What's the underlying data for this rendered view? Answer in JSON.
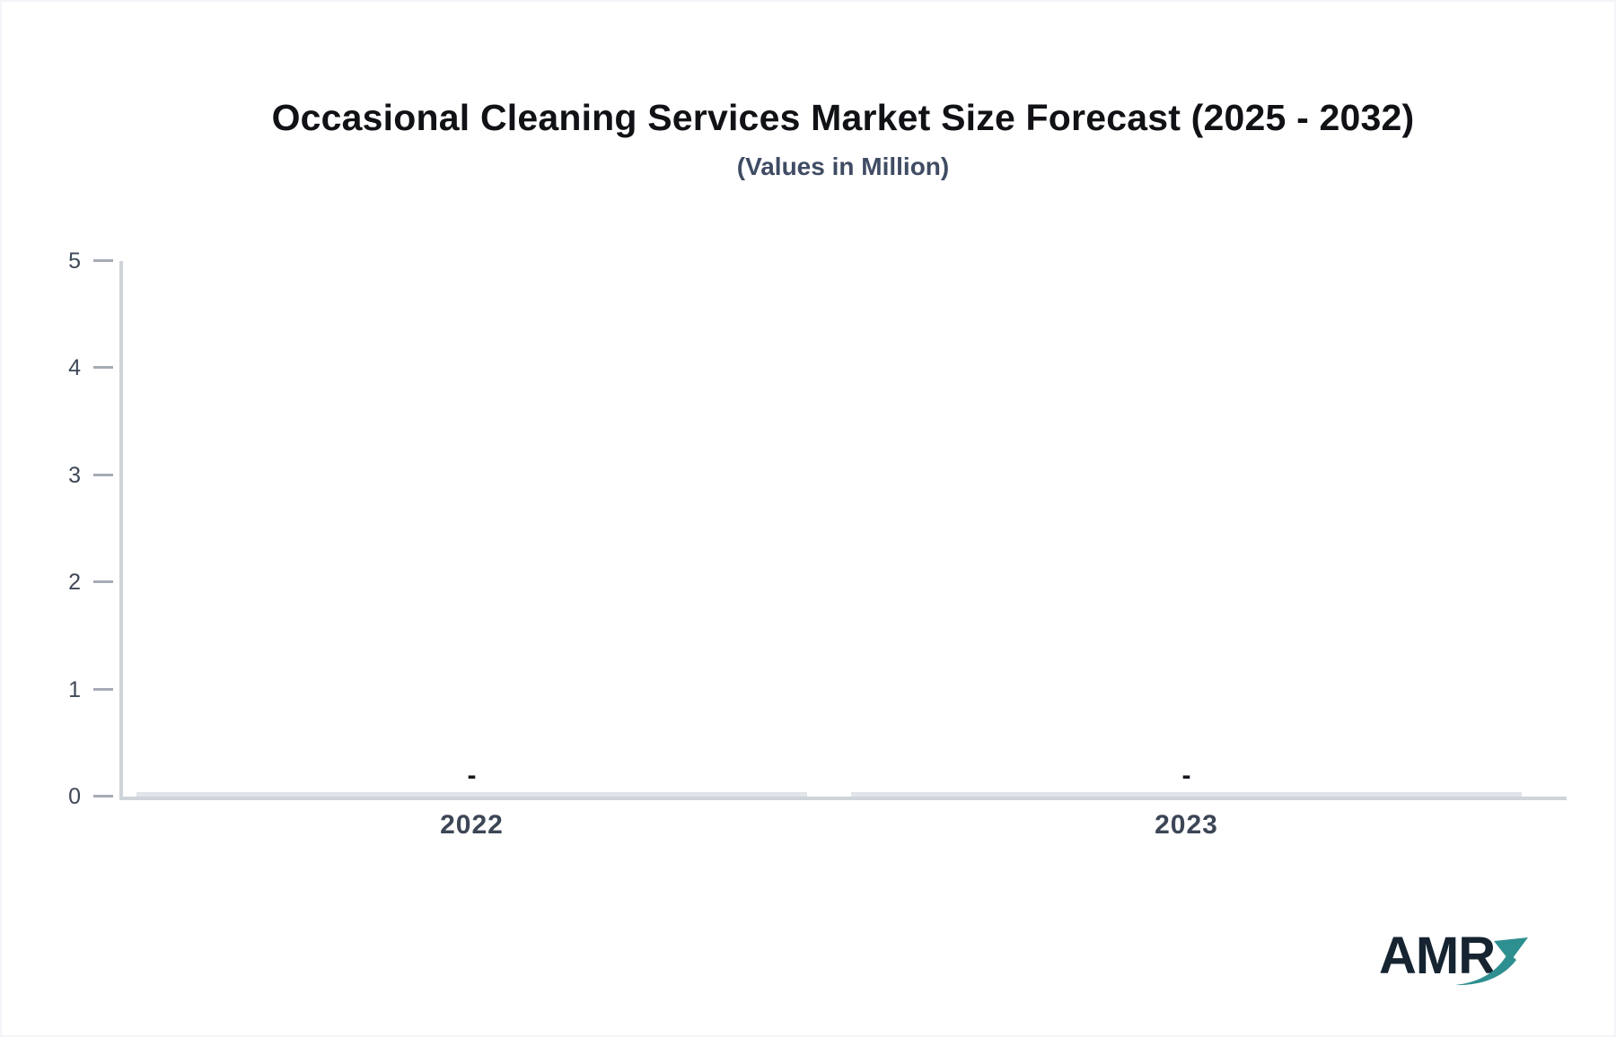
{
  "chart_data": {
    "type": "bar",
    "title": "Occasional Cleaning Services Market Size Forecast (2025 - 2032)",
    "subtitle": "(Values in Million)",
    "categories": [
      "2022",
      "2023"
    ],
    "values": [
      null,
      null
    ],
    "value_labels": [
      "-",
      "-"
    ],
    "xlabel": "",
    "ylabel": "",
    "ylim": [
      0,
      5
    ],
    "yticks": [
      0,
      1,
      2,
      3,
      4,
      5
    ],
    "grid": false,
    "legend": false
  },
  "logo": {
    "text": "AMR"
  },
  "colors": {
    "background": "#ffffff",
    "page_border": "#f3f4f8",
    "title": "#101216",
    "subtitle": "#3f4c63",
    "axis_line": "#cfd3da",
    "tick_mark": "#a6acb5",
    "y_label": "#3e4856",
    "x_label": "#3c4656",
    "value_label": "#16191d",
    "zero_bar": "#e1e4e8",
    "logo_text": "#152430",
    "logo_arrow": "#2e8f90"
  }
}
